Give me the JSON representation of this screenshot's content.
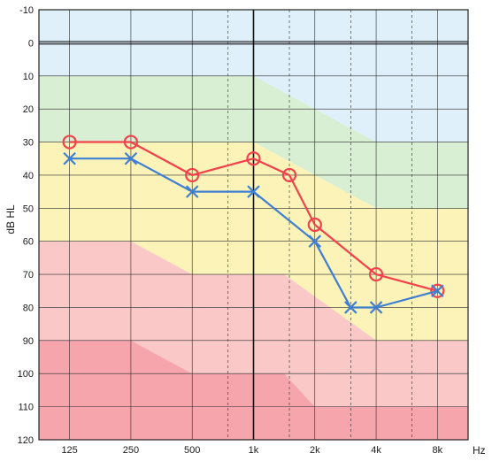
{
  "chart_data": {
    "type": "line",
    "ylabel": "dB HL",
    "xunit": "Hz",
    "y_ticks": [
      "-10",
      "0",
      "10",
      "20",
      "30",
      "40",
      "50",
      "60",
      "70",
      "80",
      "90",
      "100",
      "110",
      "120"
    ],
    "x_ticks": [
      "125",
      "250",
      "500",
      "1k",
      "2k",
      "4k",
      "8k"
    ],
    "x_tick_hz": [
      125,
      250,
      500,
      1000,
      2000,
      4000,
      8000
    ],
    "ylim": [
      -10,
      120
    ],
    "y_reversed": true,
    "x_scale": "log2",
    "xlim_hz": [
      88.4,
      11314
    ],
    "grid": true,
    "dashed_gridlines_hz": [
      750,
      1500,
      3000,
      6000
    ],
    "zones": [
      {
        "color": "#dff0fb",
        "top": [
          [
            88.4,
            -10
          ],
          [
            11314,
            -10
          ]
        ],
        "bottom": [
          [
            88.4,
            10
          ],
          [
            1000,
            10
          ],
          [
            4000,
            30
          ],
          [
            11314,
            30
          ]
        ]
      },
      {
        "color": "#d9efd3",
        "top": [
          [
            88.4,
            10
          ],
          [
            1000,
            10
          ],
          [
            4000,
            30
          ],
          [
            11314,
            30
          ]
        ],
        "bottom": [
          [
            88.4,
            30
          ],
          [
            1000,
            30
          ],
          [
            4000,
            50
          ],
          [
            11314,
            50
          ]
        ]
      },
      {
        "color": "#fbf3b8",
        "top": [
          [
            88.4,
            30
          ],
          [
            1000,
            30
          ],
          [
            4000,
            50
          ],
          [
            11314,
            50
          ]
        ],
        "bottom": [
          [
            88.4,
            60
          ],
          [
            250,
            60
          ],
          [
            500,
            70
          ],
          [
            1414,
            70
          ],
          [
            4000,
            90
          ],
          [
            11314,
            90
          ]
        ]
      },
      {
        "color": "#fbc8c8",
        "top": [
          [
            88.4,
            60
          ],
          [
            250,
            60
          ],
          [
            500,
            70
          ],
          [
            1414,
            70
          ],
          [
            4000,
            90
          ],
          [
            11314,
            90
          ]
        ],
        "bottom": [
          [
            88.4,
            90
          ],
          [
            250,
            90
          ],
          [
            500,
            100
          ],
          [
            1414,
            100
          ],
          [
            2000,
            110
          ],
          [
            11314,
            110
          ]
        ]
      },
      {
        "color": "#f6a5ad",
        "top": [
          [
            88.4,
            90
          ],
          [
            250,
            90
          ],
          [
            500,
            100
          ],
          [
            1414,
            100
          ],
          [
            2000,
            110
          ],
          [
            11314,
            110
          ]
        ],
        "bottom": [
          [
            88.4,
            120
          ],
          [
            11314,
            120
          ]
        ]
      }
    ],
    "series": [
      {
        "marker": "circle",
        "color": "#f2414b",
        "points": [
          [
            125,
            30
          ],
          [
            250,
            30
          ],
          [
            500,
            40
          ],
          [
            1000,
            35
          ],
          [
            1500,
            40
          ],
          [
            2000,
            55
          ],
          [
            4000,
            70
          ],
          [
            8000,
            75
          ]
        ]
      },
      {
        "marker": "x",
        "color": "#3f7fd2",
        "points": [
          [
            125,
            35
          ],
          [
            250,
            35
          ],
          [
            500,
            45
          ],
          [
            1000,
            45
          ],
          [
            2000,
            60
          ],
          [
            3000,
            80
          ],
          [
            4000,
            80
          ],
          [
            8000,
            75
          ]
        ]
      }
    ]
  }
}
